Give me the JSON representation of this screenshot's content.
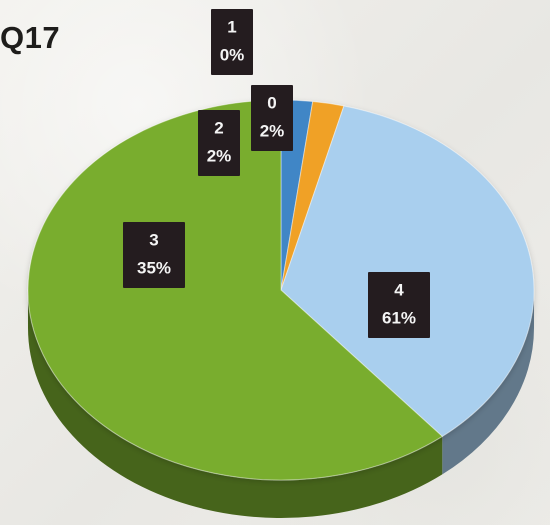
{
  "chart_data": {
    "type": "pie",
    "title": "Q17",
    "categories": [
      "0",
      "1",
      "2",
      "3",
      "4"
    ],
    "values": [
      2,
      0,
      2,
      35,
      61
    ],
    "percent_labels": [
      "2%",
      "0%",
      "2%",
      "35%",
      "61%"
    ],
    "colors": {
      "0": "#3f86c6",
      "1": "#d9d9d9",
      "2": "#f0a126",
      "3": "#a9cfee",
      "4": "#79ad2f"
    },
    "label_style": "dark-boxes",
    "legend": "none"
  }
}
